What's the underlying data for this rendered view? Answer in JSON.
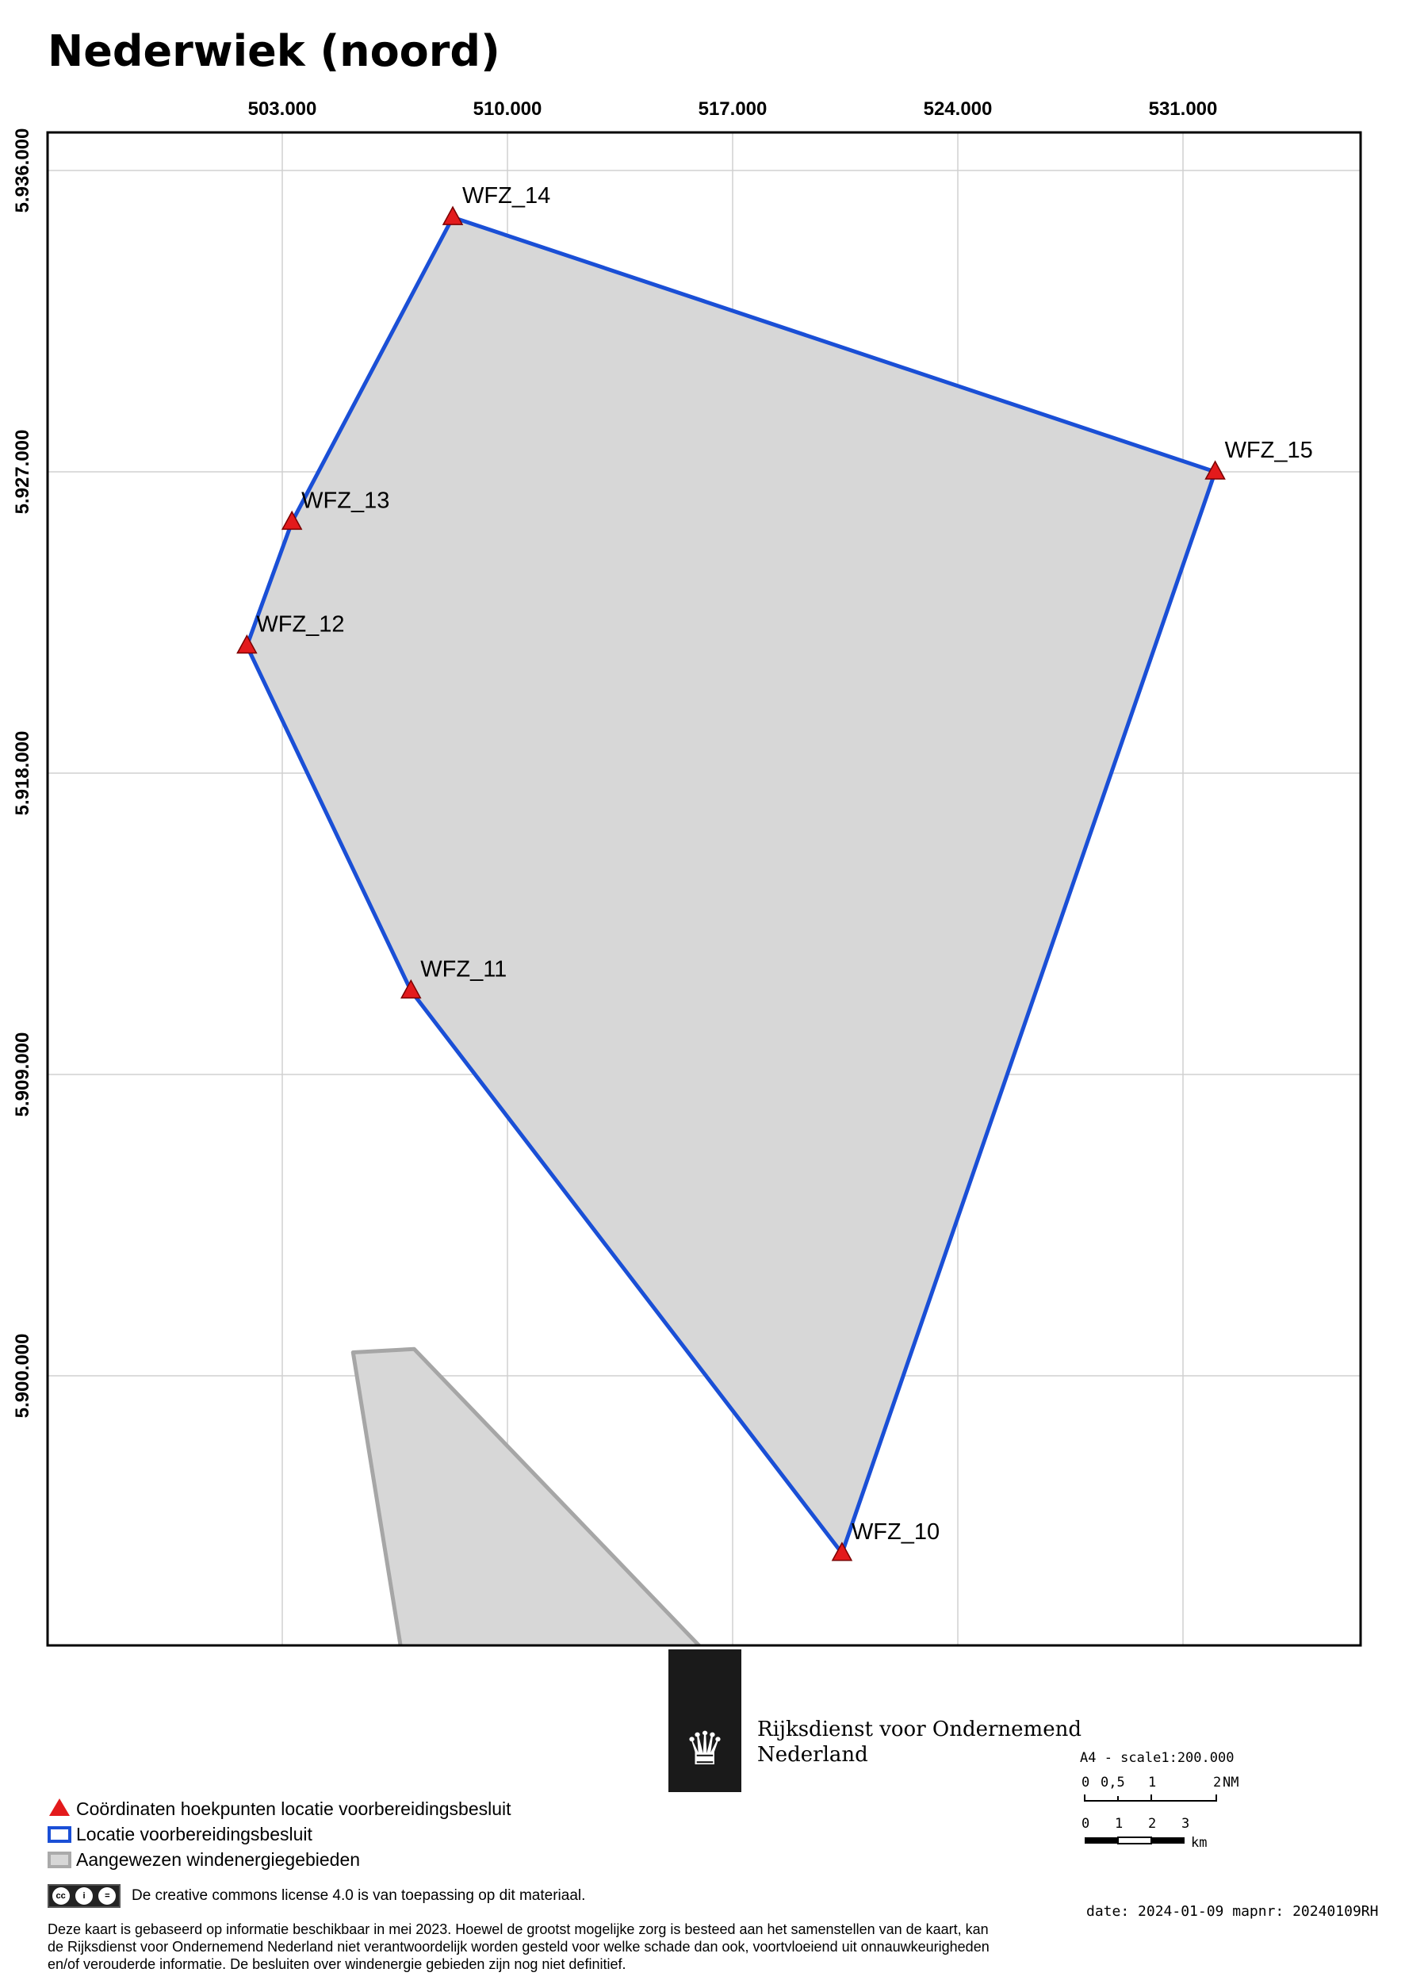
{
  "title": "Nederwiek (noord)",
  "map": {
    "x_ticks": [
      "503.000",
      "510.000",
      "517.000",
      "524.000",
      "531.000"
    ],
    "y_ticks": [
      "5.936.000",
      "5.927.000",
      "5.918.000",
      "5.909.000",
      "5.900.000"
    ],
    "points": [
      {
        "id": "WFZ_14",
        "label": "WFZ_14",
        "x": 508300,
        "y": 5934600
      },
      {
        "id": "WFZ_15",
        "label": "WFZ_15",
        "x": 532000,
        "y": 5927000
      },
      {
        "id": "WFZ_13",
        "label": "WFZ_13",
        "x": 503300,
        "y": 5925500
      },
      {
        "id": "WFZ_12",
        "label": "WFZ_12",
        "x": 501900,
        "y": 5921800
      },
      {
        "id": "WFZ_11",
        "label": "WFZ_11",
        "x": 507000,
        "y": 5911500
      },
      {
        "id": "WFZ_10",
        "label": "WFZ_10",
        "x": 520400,
        "y": 5894700
      }
    ],
    "polygon_order": [
      "WFZ_14",
      "WFZ_15",
      "WFZ_10",
      "WFZ_11",
      "WFZ_12",
      "WFZ_13"
    ],
    "designated_area": [
      [
        505200,
        5900700
      ],
      [
        507100,
        5900800
      ],
      [
        516100,
        5891800
      ],
      [
        506700,
        5891800
      ]
    ],
    "colors": {
      "location_outline": "#1a4fd6",
      "area_fill": "#d7d7d7",
      "designated_outline": "#a6a6a6",
      "marker": "#e31a1c",
      "grid": "#d0d0d0"
    }
  },
  "legend": {
    "items": [
      {
        "symbol": "red-triangle",
        "label": "Coördinaten hoekpunten locatie voorbereidingsbesluit"
      },
      {
        "symbol": "blue-outline",
        "label": "Locatie voorbereidingsbesluit"
      },
      {
        "symbol": "gray-fill",
        "label": "Aangewezen windenergiegebieden"
      }
    ]
  },
  "license": {
    "badge": "cc",
    "text": "De creative commons license 4.0 is van toepassing op dit materiaal."
  },
  "disclaimer": "Deze kaart is gebaseerd op informatie beschikbaar in mei 2023. Hoewel de grootst mogelijke zorg is besteed aan het samenstellen van de kaart, kan de Rijksdienst voor Ondernemend Nederland niet verantwoordelijk worden gesteld voor welke schade dan ook, voortvloeiend uit onnauwkeurigheden en/of verouderde informatie. De besluiten over windenergie gebieden zijn nog niet definitief.",
  "organization": {
    "line1": "Rijksdienst voor Ondernemend",
    "line2": "Nederland"
  },
  "scale": {
    "label": "A4 - scale1:200.000",
    "nm_ticks": [
      "0",
      "0,5",
      "1",
      "2"
    ],
    "nm_unit": "NM",
    "km_ticks": [
      "0",
      "1",
      "2",
      "3"
    ],
    "km_unit": "km"
  },
  "footer": {
    "date": "date: 2024-01-09 mapnr: 20240109RH"
  }
}
